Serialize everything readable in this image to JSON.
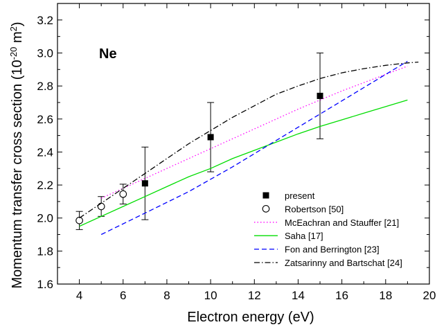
{
  "chart_data": {
    "type": "line",
    "panel_label": "Ne",
    "xlabel": "Electron energy (eV)",
    "ylabel_main": "Momentum transfer cross section (10",
    "ylabel_exp": "-20",
    "ylabel_mid": " m",
    "ylabel_exp2": "2",
    "ylabel_end": ")",
    "xlim": [
      3,
      20
    ],
    "ylim": [
      1.6,
      3.3
    ],
    "xticks": [
      4,
      6,
      8,
      10,
      12,
      14,
      16,
      18,
      20
    ],
    "yticks": [
      1.6,
      1.8,
      2.0,
      2.2,
      2.4,
      2.6,
      2.8,
      3.0,
      3.2
    ],
    "grid": false,
    "legend_position": "lower-right",
    "series": [
      {
        "name": "present",
        "kind": "points",
        "marker": "filled-square",
        "color": "#000000",
        "x": [
          7,
          10,
          15
        ],
        "y": [
          2.21,
          2.49,
          2.74
        ],
        "yerr": [
          0.22,
          0.21,
          0.26
        ]
      },
      {
        "name": "Robertson [50]",
        "kind": "points",
        "marker": "open-circle",
        "color": "#000000",
        "x": [
          4,
          5,
          6
        ],
        "y": [
          1.985,
          2.07,
          2.145
        ],
        "yerr": [
          0.055,
          0.06,
          0.06
        ]
      },
      {
        "name": "McEachran and Stauffer [21]",
        "kind": "line",
        "dash": "dotted",
        "color": "#ff00ff",
        "x": [
          5,
          6,
          7,
          8,
          10,
          12,
          14,
          16,
          18,
          19
        ],
        "y": [
          2.12,
          2.18,
          2.24,
          2.3,
          2.42,
          2.54,
          2.66,
          2.77,
          2.87,
          2.92
        ]
      },
      {
        "name": "Saha [17]",
        "kind": "line",
        "dash": "solid",
        "color": "#00dd00",
        "x": [
          4,
          5,
          6,
          7,
          8,
          9,
          10,
          11,
          12,
          13,
          14,
          15,
          16,
          17,
          18,
          19
        ],
        "y": [
          1.95,
          2.01,
          2.07,
          2.13,
          2.19,
          2.25,
          2.3,
          2.36,
          2.41,
          2.46,
          2.51,
          2.555,
          2.595,
          2.635,
          2.675,
          2.715
        ]
      },
      {
        "name": "Fon and Berrington [23]",
        "kind": "line",
        "dash": "dashed",
        "color": "#0000ff",
        "x": [
          5,
          7,
          9,
          11,
          13,
          15,
          17,
          19
        ],
        "y": [
          1.9,
          2.03,
          2.16,
          2.31,
          2.47,
          2.63,
          2.79,
          2.95
        ]
      },
      {
        "name": "Zatsarinny and Bartschat [24]",
        "kind": "line",
        "dash": "dashdot",
        "color": "#000000",
        "x": [
          4,
          5,
          6,
          7,
          8,
          9,
          10,
          11,
          12,
          13,
          14,
          15,
          16,
          17,
          18,
          19,
          19.5
        ],
        "y": [
          2.0,
          2.09,
          2.18,
          2.27,
          2.36,
          2.45,
          2.53,
          2.61,
          2.68,
          2.75,
          2.8,
          2.845,
          2.88,
          2.905,
          2.925,
          2.94,
          2.945
        ]
      }
    ]
  }
}
